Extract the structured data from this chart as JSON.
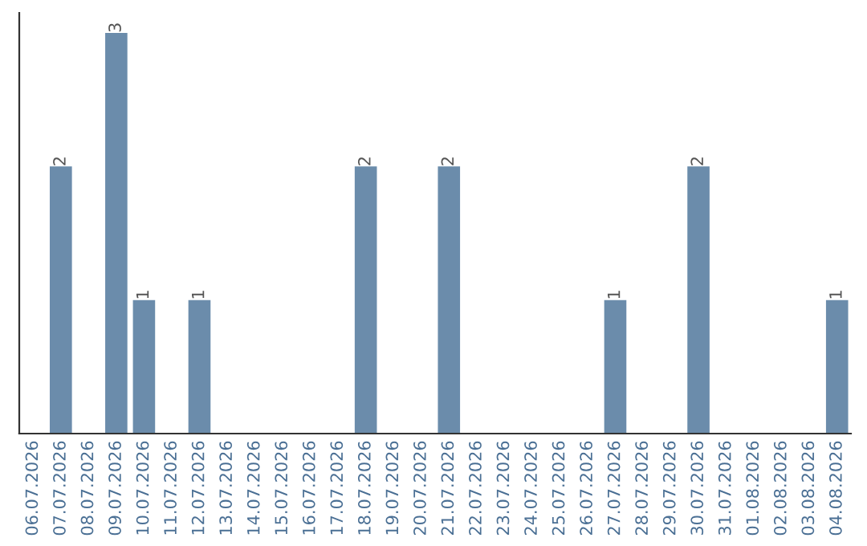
{
  "chart_data": {
    "type": "bar",
    "categories": [
      "06.07.2026",
      "07.07.2026",
      "08.07.2026",
      "09.07.2026",
      "10.07.2026",
      "11.07.2026",
      "12.07.2026",
      "13.07.2026",
      "14.07.2026",
      "15.07.2026",
      "16.07.2026",
      "17.07.2026",
      "18.07.2026",
      "19.07.2026",
      "20.07.2026",
      "21.07.2026",
      "22.07.2026",
      "23.07.2026",
      "24.07.2026",
      "25.07.2026",
      "26.07.2026",
      "27.07.2026",
      "28.07.2026",
      "29.07.2026",
      "30.07.2026",
      "31.07.2026",
      "01.08.2026",
      "02.08.2026",
      "03.08.2026",
      "04.08.2026"
    ],
    "values": [
      0,
      2,
      0,
      3,
      1,
      0,
      1,
      0,
      0,
      0,
      0,
      0,
      2,
      0,
      0,
      2,
      0,
      0,
      0,
      0,
      0,
      1,
      0,
      0,
      2,
      0,
      0,
      0,
      0,
      1
    ],
    "value_labels": [
      null,
      "2",
      null,
      "3",
      "1",
      null,
      "1",
      null,
      null,
      null,
      null,
      null,
      "2",
      null,
      null,
      "2",
      null,
      null,
      null,
      null,
      null,
      "1",
      null,
      null,
      "2",
      null,
      null,
      null,
      null,
      "1"
    ],
    "color": "#6b8cab",
    "ylim": [
      0,
      3.15
    ],
    "tick_labels": "x",
    "grid": false,
    "legend": false
  }
}
